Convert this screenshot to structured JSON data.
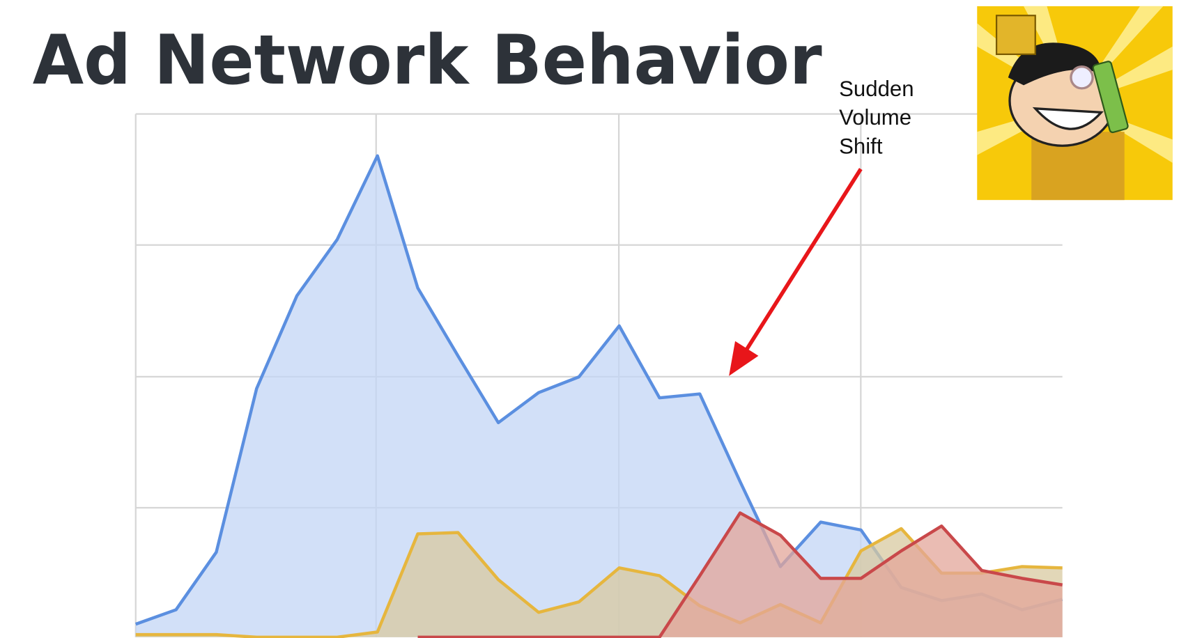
{
  "chart_data": {
    "type": "area",
    "title": "Ad Network Behavior",
    "annotation": [
      "Sudden",
      "Volume",
      "Shift"
    ],
    "ylim": [
      0,
      4
    ],
    "series": [
      {
        "color": "#5b8fe0",
        "fill": "#c3d6f6",
        "values": [
          0.1,
          0.21,
          0.65,
          1.9,
          2.61,
          3.04,
          3.68,
          2.67,
          2.15,
          1.64,
          1.87,
          1.99,
          2.38,
          1.83,
          1.86,
          1.19,
          0.54,
          0.88,
          0.82,
          0.38,
          0.28,
          0.33,
          0.21,
          0.29
        ]
      },
      {
        "color": "#e6b63e",
        "fill": "#d8c9a0",
        "values": [
          0.02,
          0.02,
          0.02,
          0,
          0,
          0,
          0.04,
          0.79,
          0.8,
          0.44,
          0.19,
          0.27,
          0.53,
          0.47,
          0.24,
          0.11,
          0.25,
          0.11,
          0.66,
          0.83,
          0.49,
          0.49,
          0.54,
          0.53
        ]
      },
      {
        "color": "#c9484a",
        "fill": "#e3a59a",
        "values": [
          null,
          null,
          null,
          null,
          null,
          null,
          null,
          0,
          0,
          0,
          0,
          0,
          0,
          0,
          0.47,
          0.95,
          0.78,
          0.45,
          0.45,
          0.66,
          0.85,
          0.51,
          0.45,
          0.4
        ]
      }
    ]
  }
}
